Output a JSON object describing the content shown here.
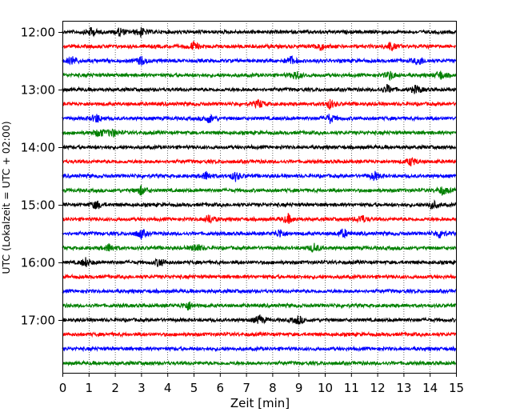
{
  "chart_data": {
    "type": "line",
    "title": "",
    "xlabel": "Zeit  [min]",
    "ylabel": "UTC (Lokalzeit = UTC + 02:00)",
    "xlim": [
      0,
      15
    ],
    "x_ticks": [
      "0",
      "1",
      "2",
      "3",
      "4",
      "5",
      "6",
      "7",
      "8",
      "9",
      "10",
      "11",
      "12",
      "13",
      "14",
      "15"
    ],
    "y_ticks": [
      "12:00",
      "13:00",
      "14:00",
      "15:00",
      "16:00",
      "17:00"
    ],
    "x_grid": true,
    "y_grid": false,
    "trace_interval_minutes": 15,
    "series_colors": [
      "#000000",
      "#ff0000",
      "#0000ff",
      "#008000"
    ],
    "traces": [
      {
        "start": "12:00",
        "color": "#000000",
        "events": [
          1.1,
          2.2,
          3.0
        ]
      },
      {
        "start": "12:15",
        "color": "#ff0000",
        "events": [
          5.0,
          9.8,
          12.5
        ]
      },
      {
        "start": "12:30",
        "color": "#0000ff",
        "events": [
          0.4,
          3.0,
          8.7,
          13.6
        ]
      },
      {
        "start": "12:45",
        "color": "#008000",
        "events": [
          8.9,
          12.5,
          14.4
        ]
      },
      {
        "start": "13:00",
        "color": "#000000",
        "events": [
          12.4,
          13.5
        ]
      },
      {
        "start": "13:15",
        "color": "#ff0000",
        "events": [
          7.5,
          10.2
        ]
      },
      {
        "start": "13:30",
        "color": "#0000ff",
        "events": [
          1.3,
          5.6,
          10.2
        ]
      },
      {
        "start": "13:45",
        "color": "#008000",
        "events": [
          1.4,
          1.9
        ]
      },
      {
        "start": "14:00",
        "color": "#000000",
        "events": []
      },
      {
        "start": "14:15",
        "color": "#ff0000",
        "events": [
          13.3
        ]
      },
      {
        "start": "14:30",
        "color": "#0000ff",
        "events": [
          5.5,
          6.6,
          11.9
        ]
      },
      {
        "start": "14:45",
        "color": "#008000",
        "events": [
          3.0,
          14.5
        ]
      },
      {
        "start": "15:00",
        "color": "#000000",
        "events": [
          1.3,
          14.1
        ]
      },
      {
        "start": "15:15",
        "color": "#ff0000",
        "events": [
          5.6,
          8.6,
          11.4
        ]
      },
      {
        "start": "15:30",
        "color": "#0000ff",
        "events": [
          3.0,
          8.3,
          10.7,
          14.4
        ]
      },
      {
        "start": "15:45",
        "color": "#008000",
        "events": [
          1.8,
          5.1,
          9.6
        ]
      },
      {
        "start": "16:00",
        "color": "#000000",
        "events": [
          0.9,
          3.7
        ]
      },
      {
        "start": "16:15",
        "color": "#ff0000",
        "events": []
      },
      {
        "start": "16:30",
        "color": "#0000ff",
        "events": []
      },
      {
        "start": "16:45",
        "color": "#008000",
        "events": [
          4.8
        ]
      },
      {
        "start": "17:00",
        "color": "#000000",
        "events": [
          7.5,
          9.0
        ]
      },
      {
        "start": "17:15",
        "color": "#ff0000",
        "events": []
      },
      {
        "start": "17:30",
        "color": "#0000ff",
        "events": []
      },
      {
        "start": "17:45",
        "color": "#008000",
        "events": []
      }
    ]
  }
}
